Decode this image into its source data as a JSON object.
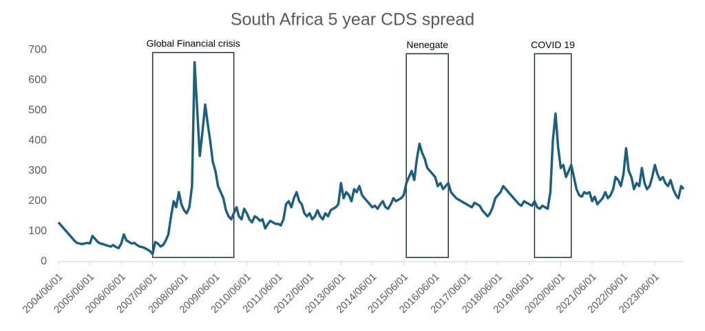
{
  "chart_data": {
    "type": "line",
    "title": "South Africa 5 year CDS spread",
    "color": "#1d5f7c",
    "xlim": [
      "2004/06/01",
      "2024/05/01"
    ],
    "xticks": [
      "2004/06/01",
      "2005/06/01",
      "2006/06/01",
      "2007/06/01",
      "2008/06/01",
      "2009/06/01",
      "2010/06/01",
      "2011/06/01",
      "2012/06/01",
      "2013/06/01",
      "2014/06/01",
      "2015/06/01",
      "2016/06/01",
      "2017/06/01",
      "2018/06/01",
      "2019/06/01",
      "2020/06/01",
      "2021/06/01",
      "2022/06/01",
      "2023/06/01"
    ],
    "ylim": [
      0,
      700
    ],
    "yticks": [
      0,
      100,
      200,
      300,
      400,
      500,
      600,
      700
    ],
    "annotations": [
      {
        "text": "Global Financial crisis",
        "x": [
          "2007/06/01",
          "2010/01/01"
        ],
        "y": [
          14,
          692
        ]
      },
      {
        "text": "Nenegate",
        "x": [
          "2015/07/01",
          "2016/11/01"
        ],
        "y": [
          14,
          688
        ]
      },
      {
        "text": "COVID 19",
        "x": [
          "2019/08/01",
          "2020/10/01"
        ],
        "y": [
          14,
          688
        ]
      }
    ],
    "x": [
      "2004/06/01",
      "2004/07/01",
      "2004/08/01",
      "2004/09/01",
      "2004/10/01",
      "2004/11/01",
      "2004/12/01",
      "2005/01/01",
      "2005/02/01",
      "2005/03/01",
      "2005/04/01",
      "2005/05/01",
      "2005/06/01",
      "2005/07/01",
      "2005/08/01",
      "2005/09/01",
      "2005/10/01",
      "2005/11/01",
      "2005/12/01",
      "2006/01/01",
      "2006/02/01",
      "2006/03/01",
      "2006/04/01",
      "2006/05/01",
      "2006/06/01",
      "2006/07/01",
      "2006/08/01",
      "2006/09/01",
      "2006/10/01",
      "2006/11/01",
      "2006/12/01",
      "2007/01/01",
      "2007/02/01",
      "2007/03/01",
      "2007/04/01",
      "2007/05/01",
      "2007/06/01",
      "2007/07/01",
      "2007/08/01",
      "2007/09/01",
      "2007/10/01",
      "2007/11/01",
      "2007/12/01",
      "2008/01/01",
      "2008/02/01",
      "2008/03/01",
      "2008/04/01",
      "2008/05/01",
      "2008/06/01",
      "2008/07/01",
      "2008/08/01",
      "2008/09/01",
      "2008/10/01",
      "2008/11/01",
      "2008/12/01",
      "2009/01/01",
      "2009/02/01",
      "2009/03/01",
      "2009/04/01",
      "2009/05/01",
      "2009/06/01",
      "2009/07/01",
      "2009/08/01",
      "2009/09/01",
      "2009/10/01",
      "2009/11/01",
      "2009/12/01",
      "2010/01/01",
      "2010/02/01",
      "2010/03/01",
      "2010/04/01",
      "2010/05/01",
      "2010/06/01",
      "2010/07/01",
      "2010/08/01",
      "2010/09/01",
      "2010/10/01",
      "2010/11/01",
      "2010/12/01",
      "2011/01/01",
      "2011/02/01",
      "2011/03/01",
      "2011/04/01",
      "2011/05/01",
      "2011/06/01",
      "2011/07/01",
      "2011/08/01",
      "2011/09/01",
      "2011/10/01",
      "2011/11/01",
      "2011/12/01",
      "2012/01/01",
      "2012/02/01",
      "2012/03/01",
      "2012/04/01",
      "2012/05/01",
      "2012/06/01",
      "2012/07/01",
      "2012/08/01",
      "2012/09/01",
      "2012/10/01",
      "2012/11/01",
      "2012/12/01",
      "2013/01/01",
      "2013/02/01",
      "2013/03/01",
      "2013/04/01",
      "2013/05/01",
      "2013/06/01",
      "2013/07/01",
      "2013/08/01",
      "2013/09/01",
      "2013/10/01",
      "2013/11/01",
      "2013/12/01",
      "2014/01/01",
      "2014/02/01",
      "2014/03/01",
      "2014/04/01",
      "2014/05/01",
      "2014/06/01",
      "2014/07/01",
      "2014/08/01",
      "2014/09/01",
      "2014/10/01",
      "2014/11/01",
      "2014/12/01",
      "2015/01/01",
      "2015/02/01",
      "2015/03/01",
      "2015/04/01",
      "2015/05/01",
      "2015/06/01",
      "2015/07/01",
      "2015/08/01",
      "2015/09/01",
      "2015/10/01",
      "2015/11/01",
      "2015/12/01",
      "2016/01/01",
      "2016/02/01",
      "2016/03/01",
      "2016/04/01",
      "2016/05/01",
      "2016/06/01",
      "2016/07/01",
      "2016/08/01",
      "2016/09/01",
      "2016/10/01",
      "2016/11/01",
      "2016/12/01",
      "2017/01/01",
      "2017/02/01",
      "2017/03/01",
      "2017/04/01",
      "2017/05/01",
      "2017/06/01",
      "2017/07/01",
      "2017/08/01",
      "2017/09/01",
      "2017/10/01",
      "2017/11/01",
      "2017/12/01",
      "2018/01/01",
      "2018/02/01",
      "2018/03/01",
      "2018/04/01",
      "2018/05/01",
      "2018/06/01",
      "2018/07/01",
      "2018/08/01",
      "2018/09/01",
      "2018/10/01",
      "2018/11/01",
      "2018/12/01",
      "2019/01/01",
      "2019/02/01",
      "2019/03/01",
      "2019/04/01",
      "2019/05/01",
      "2019/06/01",
      "2019/07/01",
      "2019/08/01",
      "2019/09/01",
      "2019/10/01",
      "2019/11/01",
      "2019/12/01",
      "2020/01/01",
      "2020/02/01",
      "2020/03/01",
      "2020/04/01",
      "2020/05/01",
      "2020/06/01",
      "2020/07/01",
      "2020/08/01",
      "2020/09/01",
      "2020/10/01",
      "2020/11/01",
      "2020/12/01",
      "2021/01/01",
      "2021/02/01",
      "2021/03/01",
      "2021/04/01",
      "2021/05/01",
      "2021/06/01",
      "2021/07/01",
      "2021/08/01",
      "2021/09/01",
      "2021/10/01",
      "2021/11/01",
      "2021/12/01",
      "2022/01/01",
      "2022/02/01",
      "2022/03/01",
      "2022/04/01",
      "2022/05/01",
      "2022/06/01",
      "2022/07/01",
      "2022/08/01",
      "2022/09/01",
      "2022/10/01",
      "2022/11/01",
      "2022/12/01",
      "2023/01/01",
      "2023/02/01",
      "2023/03/01",
      "2023/04/01",
      "2023/05/01",
      "2023/06/01",
      "2023/07/01",
      "2023/08/01",
      "2023/09/01",
      "2023/10/01",
      "2023/11/01",
      "2023/12/01",
      "2024/01/01",
      "2024/02/01",
      "2024/03/01",
      "2024/04/01",
      "2024/05/01"
    ],
    "values": [
      130,
      120,
      110,
      100,
      90,
      80,
      70,
      62,
      60,
      58,
      60,
      62,
      60,
      85,
      75,
      65,
      60,
      58,
      55,
      52,
      50,
      55,
      48,
      45,
      60,
      90,
      70,
      65,
      60,
      62,
      55,
      50,
      48,
      45,
      40,
      35,
      25,
      65,
      60,
      50,
      55,
      70,
      90,
      150,
      200,
      180,
      230,
      190,
      170,
      160,
      180,
      250,
      660,
      500,
      350,
      430,
      520,
      460,
      400,
      330,
      300,
      250,
      230,
      210,
      170,
      150,
      140,
      160,
      180,
      150,
      140,
      175,
      160,
      140,
      130,
      150,
      145,
      135,
      140,
      110,
      125,
      135,
      130,
      125,
      125,
      120,
      140,
      190,
      200,
      180,
      210,
      230,
      200,
      190,
      160,
      150,
      160,
      140,
      150,
      170,
      150,
      140,
      160,
      150,
      170,
      175,
      180,
      190,
      260,
      210,
      230,
      220,
      200,
      240,
      230,
      250,
      220,
      210,
      200,
      190,
      180,
      185,
      175,
      190,
      200,
      180,
      175,
      190,
      210,
      200,
      205,
      210,
      220,
      260,
      280,
      300,
      270,
      340,
      390,
      360,
      340,
      310,
      300,
      290,
      280,
      250,
      260,
      240,
      250,
      260,
      230,
      220,
      210,
      205,
      200,
      195,
      190,
      185,
      180,
      195,
      190,
      185,
      170,
      160,
      150,
      160,
      180,
      210,
      220,
      230,
      250,
      240,
      230,
      220,
      210,
      200,
      190,
      185,
      200,
      195,
      190,
      185,
      200,
      180,
      175,
      185,
      180,
      175,
      230,
      400,
      490,
      380,
      310,
      320,
      280,
      300,
      320,
      280,
      240,
      220,
      215,
      230,
      225,
      230,
      200,
      215,
      190,
      200,
      210,
      230,
      210,
      220,
      240,
      280,
      270,
      250,
      290,
      375,
      300,
      280,
      240,
      260,
      250,
      310,
      260,
      240,
      250,
      280,
      320,
      290,
      270,
      280,
      260,
      250,
      270,
      240,
      220,
      210,
      250,
      240
    ]
  }
}
